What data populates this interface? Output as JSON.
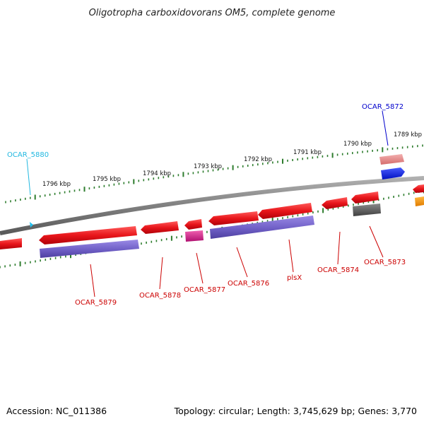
{
  "title": "Oligotropha carboxidovorans OM5, complete genome",
  "footer": {
    "accession": "Accession: NC_011386",
    "summary": "Topology: circular; Length: 3,745,629 bp; Genes: 3,770"
  },
  "colors": {
    "backbone": "#808080",
    "tick": "#2e7d2e",
    "cds": "#e8161b",
    "gene_rna": "#7060c8",
    "label_red": "#cc0000",
    "label_blue": "#0000cc",
    "label_cyan": "#22b8e0",
    "pink": "#e88a8a",
    "blue": "#0018f0",
    "magenta": "#e0208a",
    "gray": "#555555",
    "orange": "#ff9900"
  },
  "ticks": [
    "1796 kbp",
    "1795 kbp",
    "1794 kbp",
    "1793 kbp",
    "1792 kbp",
    "1791 kbp",
    "1790 kbp",
    "1789 kbp"
  ],
  "labels": {
    "ocar_5880": "OCAR_5880",
    "ocar_5872": "OCAR_5872",
    "ocar_5879": "OCAR_5879",
    "ocar_5878": "OCAR_5878",
    "ocar_5877": "OCAR_5877",
    "ocar_5876": "OCAR_5876",
    "plsx": "plsX",
    "ocar_5874": "OCAR_5874",
    "ocar_5873": "OCAR_5873"
  }
}
